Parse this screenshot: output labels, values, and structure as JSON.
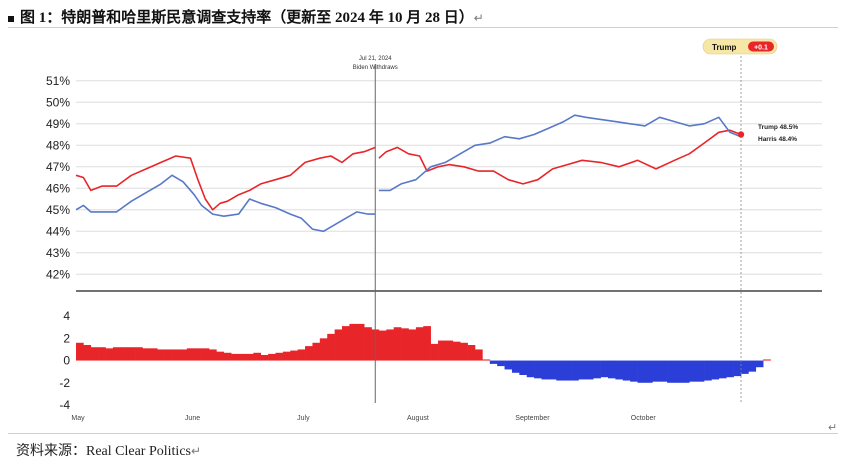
{
  "figure": {
    "bullet": "■",
    "title": "图 1：特朗普和哈里斯民意调查支持率（更新至 2024 年 10 月 28 日）",
    "title_mark": "↵",
    "source": "资料来源：Real Clear Politics",
    "source_mark": "↵",
    "corner_mark": "↵"
  },
  "chart_data": [
    {
      "type": "line",
      "x_axis": {
        "type": "date",
        "range": [
          "2024-05-01",
          "2024-10-28"
        ],
        "tick_labels": [
          {
            "label": "May",
            "date": "2024-05-01"
          },
          {
            "label": "June",
            "date": "2024-06-01"
          },
          {
            "label": "July",
            "date": "2024-07-01"
          },
          {
            "label": "August",
            "date": "2024-08-01"
          },
          {
            "label": "September",
            "date": "2024-09-01"
          },
          {
            "label": "October",
            "date": "2024-10-01"
          }
        ]
      },
      "ylim": [
        41.5,
        51.5
      ],
      "yticks": [
        42,
        43,
        44,
        45,
        46,
        47,
        48,
        49,
        50,
        51
      ],
      "ytick_suffix": "%",
      "grid": "horizontal",
      "annotation": {
        "date": "2024-07-21",
        "lines": [
          "Jul 21, 2024",
          "Biden Withdraws"
        ]
      },
      "badge": {
        "label": "Trump",
        "value": "+0.1"
      },
      "end_labels": [
        {
          "series": "Trump",
          "text": "Trump 48.5%",
          "value": 48.5
        },
        {
          "series": "Harris",
          "text": "Harris 48.4%",
          "value": 48.4
        }
      ],
      "colors": {
        "Trump": "#e8262a",
        "Harris": "#5878c8"
      },
      "series": [
        {
          "name": "Trump",
          "segments": [
            {
              "x": [
                "2024-05-01",
                "2024-05-03",
                "2024-05-05",
                "2024-05-08",
                "2024-05-12",
                "2024-05-16",
                "2024-05-20",
                "2024-05-24",
                "2024-05-28",
                "2024-06-01",
                "2024-06-03",
                "2024-06-05",
                "2024-06-07",
                "2024-06-09",
                "2024-06-11",
                "2024-06-14",
                "2024-06-17",
                "2024-06-20",
                "2024-06-24",
                "2024-06-28",
                "2024-07-02",
                "2024-07-06",
                "2024-07-09",
                "2024-07-12",
                "2024-07-15",
                "2024-07-18",
                "2024-07-21"
              ],
              "values": [
                46.6,
                46.5,
                45.9,
                46.1,
                46.1,
                46.6,
                46.9,
                47.2,
                47.5,
                47.4,
                46.4,
                45.5,
                45.0,
                45.3,
                45.4,
                45.7,
                45.9,
                46.2,
                46.4,
                46.6,
                47.2,
                47.4,
                47.5,
                47.2,
                47.6,
                47.7,
                47.9
              ]
            },
            {
              "x": [
                "2024-07-22",
                "2024-07-24",
                "2024-07-27",
                "2024-07-30",
                "2024-08-02",
                "2024-08-04",
                "2024-08-07",
                "2024-08-10",
                "2024-08-14",
                "2024-08-18",
                "2024-08-22",
                "2024-08-26",
                "2024-08-30",
                "2024-09-03",
                "2024-09-07",
                "2024-09-11",
                "2024-09-15",
                "2024-09-20",
                "2024-09-25",
                "2024-09-30",
                "2024-10-05",
                "2024-10-10",
                "2024-10-14",
                "2024-10-18",
                "2024-10-22",
                "2024-10-25",
                "2024-10-28"
              ],
              "values": [
                47.4,
                47.7,
                47.9,
                47.6,
                47.5,
                46.8,
                47.0,
                47.1,
                47.0,
                46.8,
                46.8,
                46.4,
                46.2,
                46.4,
                46.9,
                47.1,
                47.3,
                47.2,
                47.0,
                47.3,
                46.9,
                47.3,
                47.6,
                48.1,
                48.6,
                48.7,
                48.5
              ]
            }
          ]
        },
        {
          "name": "Harris",
          "segments": [
            {
              "x": [
                "2024-05-01",
                "2024-05-03",
                "2024-05-05",
                "2024-05-08",
                "2024-05-12",
                "2024-05-16",
                "2024-05-20",
                "2024-05-24",
                "2024-05-27",
                "2024-05-30",
                "2024-06-02",
                "2024-06-04",
                "2024-06-07",
                "2024-06-10",
                "2024-06-14",
                "2024-06-17",
                "2024-06-20",
                "2024-06-24",
                "2024-06-28",
                "2024-07-01",
                "2024-07-04",
                "2024-07-07",
                "2024-07-10",
                "2024-07-13",
                "2024-07-16",
                "2024-07-19",
                "2024-07-21"
              ],
              "values": [
                45.0,
                45.2,
                44.9,
                44.9,
                44.9,
                45.4,
                45.8,
                46.2,
                46.6,
                46.3,
                45.7,
                45.2,
                44.8,
                44.7,
                44.8,
                45.5,
                45.3,
                45.1,
                44.8,
                44.6,
                44.1,
                44.0,
                44.3,
                44.6,
                44.9,
                44.8,
                44.8
              ]
            },
            {
              "x": [
                "2024-07-22",
                "2024-07-25",
                "2024-07-28",
                "2024-08-01",
                "2024-08-05",
                "2024-08-09",
                "2024-08-13",
                "2024-08-17",
                "2024-08-21",
                "2024-08-25",
                "2024-08-29",
                "2024-09-02",
                "2024-09-06",
                "2024-09-10",
                "2024-09-13",
                "2024-09-16",
                "2024-09-20",
                "2024-09-24",
                "2024-09-28",
                "2024-10-02",
                "2024-10-06",
                "2024-10-10",
                "2024-10-14",
                "2024-10-18",
                "2024-10-22",
                "2024-10-25",
                "2024-10-28"
              ],
              "values": [
                45.9,
                45.9,
                46.2,
                46.4,
                47.0,
                47.2,
                47.6,
                48.0,
                48.1,
                48.4,
                48.3,
                48.5,
                48.8,
                49.1,
                49.4,
                49.3,
                49.2,
                49.1,
                49.0,
                48.9,
                49.3,
                49.1,
                48.9,
                49.0,
                49.3,
                48.6,
                48.4
              ]
            }
          ]
        }
      ]
    },
    {
      "type": "bar",
      "title": "",
      "ylim": [
        -4,
        5
      ],
      "yticks": [
        -4,
        -2,
        0,
        2,
        4
      ],
      "colors": {
        "positive": "#e8262a",
        "negative": "#2b3fd8"
      },
      "bar_dates": {
        "start": "2024-05-01",
        "end": "2024-10-28",
        "every_days": 2
      },
      "annotation_date": "2024-07-21",
      "values": [
        1.6,
        1.4,
        1.2,
        1.2,
        1.1,
        1.2,
        1.2,
        1.2,
        1.2,
        1.1,
        1.1,
        1.0,
        1.0,
        1.0,
        1.0,
        1.1,
        1.1,
        1.1,
        1.0,
        0.8,
        0.7,
        0.6,
        0.6,
        0.6,
        0.7,
        0.5,
        0.6,
        0.7,
        0.8,
        0.9,
        1.0,
        1.3,
        1.6,
        2.0,
        2.4,
        2.8,
        3.1,
        3.3,
        3.3,
        3.0,
        2.8,
        2.7,
        2.8,
        3.0,
        2.9,
        2.8,
        3.0,
        3.1,
        1.5,
        1.8,
        1.8,
        1.7,
        1.6,
        1.4,
        1.0,
        0.1,
        -0.3,
        -0.5,
        -0.8,
        -1.1,
        -1.3,
        -1.5,
        -1.6,
        -1.7,
        -1.7,
        -1.8,
        -1.8,
        -1.8,
        -1.7,
        -1.7,
        -1.6,
        -1.5,
        -1.6,
        -1.7,
        -1.8,
        -1.9,
        -2.0,
        -2.0,
        -1.9,
        -1.9,
        -2.0,
        -2.0,
        -2.0,
        -1.9,
        -1.9,
        -1.8,
        -1.7,
        -1.6,
        -1.5,
        -1.4,
        -1.2,
        -1.0,
        -0.6,
        0.1
      ]
    }
  ]
}
